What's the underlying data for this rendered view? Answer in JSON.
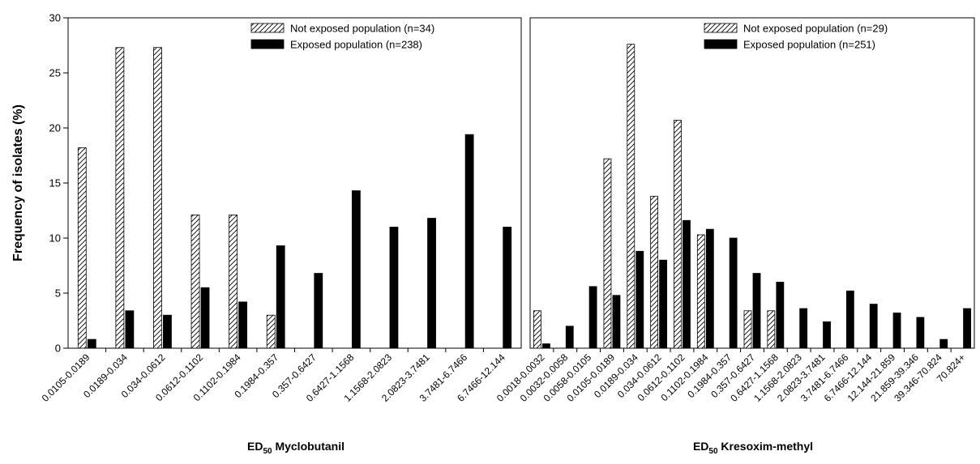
{
  "chart_data": [
    {
      "type": "bar",
      "ylabel": "Frequency of isolates (%)",
      "xlabel": {
        "prefix": "ED",
        "subscript": "50",
        "suffix": " Myclobutanil"
      },
      "ylim": [
        0,
        30
      ],
      "yticks": [
        "0",
        "5",
        "10",
        "15",
        "20",
        "25",
        "30"
      ],
      "legend_position": "top-right",
      "categories": [
        "0.0105-0.0189",
        "0.0189-0.034",
        "0.034-0.0612",
        "0.0612-0.1102",
        "0.1102-0.1984",
        "0.1984-0.357",
        "0.357-0.6427",
        "0.6427-1.1568",
        "1.1568-2.0823",
        "2.0823-3.7481",
        "3.7481-6.7466",
        "6.7466-12.144"
      ],
      "series": [
        {
          "name": "Not exposed population (n=34)",
          "style": "hatched",
          "values": [
            18.2,
            27.3,
            27.3,
            12.1,
            12.1,
            3.0,
            0,
            0,
            0,
            0,
            0,
            0
          ]
        },
        {
          "name": "Exposed population (n=238)",
          "style": "solid",
          "values": [
            0.8,
            3.4,
            3.0,
            5.5,
            4.2,
            9.3,
            6.8,
            14.3,
            11.0,
            11.8,
            19.4,
            11.0
          ]
        }
      ]
    },
    {
      "type": "bar",
      "xlabel": {
        "prefix": "ED",
        "subscript": "50",
        "suffix": " Kresoxim-methyl"
      },
      "ylim": [
        0,
        30
      ],
      "legend_position": "top-right",
      "categories": [
        "0.0018-0.0032",
        "0.0032-0.0058",
        "0.0058-0.0105",
        "0.0105-0.0189",
        "0.0189-0.034",
        "0.034-0.0612",
        "0.0612-0.1102",
        "0.1102-0.1984",
        "0.1984-0.357",
        "0.357-0.6427",
        "0.6427-1.1568",
        "1.1568-2.0823",
        "2.0823-3.7481",
        "3.7481-6.7466",
        "6.7466-12.144",
        "12.144-21.859",
        "21.859-39.346",
        "39.346-70.824",
        "70.824+"
      ],
      "series": [
        {
          "name": "Not exposed population (n=29)",
          "style": "hatched",
          "values": [
            3.4,
            0,
            0,
            17.2,
            27.6,
            13.8,
            20.7,
            10.3,
            0,
            3.4,
            3.4,
            0,
            0,
            0,
            0,
            0,
            0,
            0,
            0
          ]
        },
        {
          "name": "Exposed population (n=251)",
          "style": "solid",
          "values": [
            0.4,
            2.0,
            5.6,
            4.8,
            8.8,
            8.0,
            11.6,
            10.8,
            10.0,
            6.8,
            6.0,
            3.6,
            2.4,
            5.2,
            4.0,
            3.2,
            2.8,
            0.8,
            3.6
          ]
        }
      ]
    }
  ]
}
